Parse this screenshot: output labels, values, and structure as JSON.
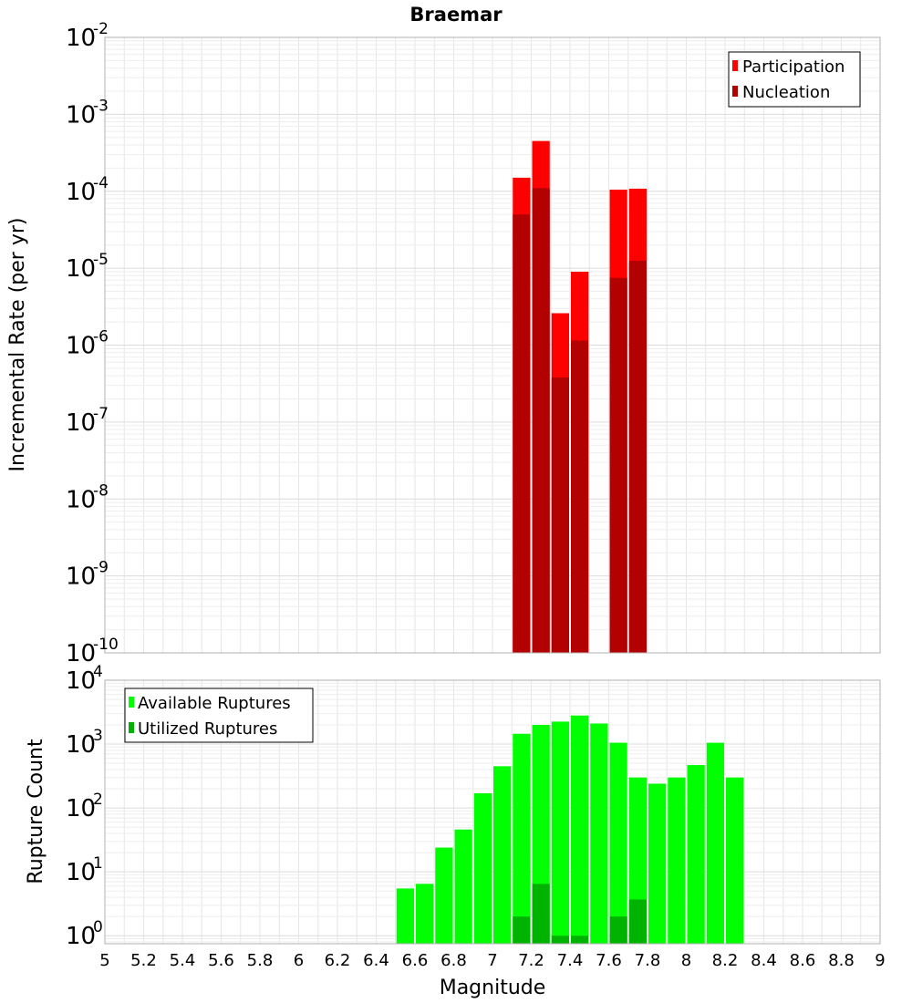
{
  "chart_data": [
    {
      "type": "bar",
      "title": "Braemar",
      "xlabel": "",
      "ylabel": "Incremental Rate (per yr)",
      "yscale": "log",
      "xlim": [
        5,
        9
      ],
      "ylim": [
        1e-10,
        0.01
      ],
      "grid": true,
      "legend_position": "top-right",
      "x": [
        7.15,
        7.25,
        7.35,
        7.45,
        7.65,
        7.75
      ],
      "series": [
        {
          "name": "Participation",
          "color": "#ff0000",
          "values": [
            0.00015,
            0.00045,
            2.6e-06,
            9e-06,
            0.000105,
            0.000108
          ]
        },
        {
          "name": "Nucleation",
          "color": "#b30000",
          "values": [
            5e-05,
            0.00011,
            3.8e-07,
            1.15e-06,
            7.5e-06,
            1.25e-05
          ]
        }
      ],
      "y_tick_exponents": [
        "-2",
        "-3",
        "-4",
        "-5",
        "-6",
        "-7",
        "-8",
        "-9",
        "-10"
      ]
    },
    {
      "type": "bar",
      "title": "",
      "xlabel": "Magnitude",
      "ylabel": "Rupture Count",
      "yscale": "log",
      "xlim": [
        5,
        9
      ],
      "ylim": [
        0.75,
        10000.0
      ],
      "grid": true,
      "legend_position": "top-left",
      "x": [
        6.55,
        6.65,
        6.75,
        6.85,
        6.95,
        7.05,
        7.15,
        7.25,
        7.35,
        7.45,
        7.55,
        7.65,
        7.75,
        7.85,
        7.95,
        8.05,
        8.15,
        8.25
      ],
      "series": [
        {
          "name": "Available Ruptures",
          "color": "#00ff00",
          "values": [
            5.5,
            6.5,
            24,
            46,
            170,
            450,
            1450,
            2000,
            2250,
            2800,
            2100,
            1050,
            300,
            240,
            300,
            470,
            1050,
            300
          ]
        },
        {
          "name": "Utilized Ruptures",
          "color": "#00b300",
          "values": [
            0,
            0,
            0,
            0,
            0,
            0,
            2,
            6.5,
            1,
            1,
            0,
            2,
            3.7,
            0,
            0,
            0,
            0,
            0
          ]
        }
      ],
      "y_tick_exponents": [
        "4",
        "3",
        "2",
        "1",
        "0"
      ],
      "x_tick_labels": [
        "5",
        "5.2",
        "5.4",
        "5.6",
        "5.8",
        "6",
        "6.2",
        "6.4",
        "6.6",
        "6.8",
        "7",
        "7.2",
        "7.4",
        "7.6",
        "7.8",
        "8",
        "8.2",
        "8.4",
        "8.6",
        "8.8",
        "9"
      ]
    }
  ]
}
